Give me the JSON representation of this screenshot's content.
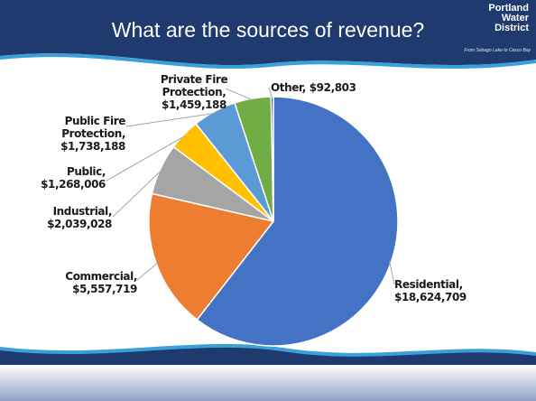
{
  "header": {
    "title": "What are the sources of revenue?",
    "logo": "Portland Water District",
    "tagline": "From Sebago Lake to Casco Bay"
  },
  "chart_data": {
    "type": "pie",
    "categories": [
      "Residential,",
      "Commercial,",
      "Industrial,",
      "Public,",
      "Public Fire Protection,",
      "Private Fire Protection,",
      "Other,"
    ],
    "values": [
      18624709,
      5557719,
      2039028,
      1268006,
      1738188,
      1459188,
      92803
    ],
    "value_labels": [
      "$18,624,709",
      "$5,557,719",
      "$2,039,028",
      "$1,268,006",
      "$1,738,188",
      "$1,459,188",
      "$92,803"
    ],
    "colors": [
      "#4472c4",
      "#ed7d31",
      "#a5a5a5",
      "#ffc000",
      "#5b9bd5",
      "#70ad47",
      "#2f5597"
    ]
  }
}
